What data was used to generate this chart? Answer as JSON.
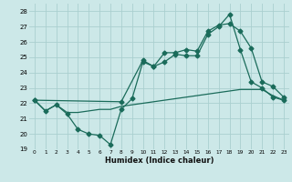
{
  "xlabel": "Humidex (Indice chaleur)",
  "xlim": [
    -0.5,
    23.5
  ],
  "ylim": [
    19,
    28.5
  ],
  "yticks": [
    19,
    20,
    21,
    22,
    23,
    24,
    25,
    26,
    27,
    28
  ],
  "xticks": [
    0,
    1,
    2,
    3,
    4,
    5,
    6,
    7,
    8,
    9,
    10,
    11,
    12,
    13,
    14,
    15,
    16,
    17,
    18,
    19,
    20,
    21,
    22,
    23
  ],
  "color": "#1a6b5a",
  "bg_color": "#cce8e8",
  "grid_color": "#aacfcf",
  "line1_x": [
    0,
    1,
    2,
    3,
    4,
    5,
    6,
    7,
    8,
    9,
    10,
    11,
    12,
    13,
    14,
    15,
    16,
    17,
    18,
    19,
    20,
    21,
    22,
    23
  ],
  "line1_y": [
    22.2,
    21.5,
    21.9,
    21.3,
    20.3,
    20.0,
    19.9,
    19.3,
    21.6,
    22.3,
    24.7,
    24.4,
    24.7,
    25.2,
    25.1,
    25.1,
    26.5,
    27.0,
    27.8,
    25.5,
    23.4,
    23.0,
    22.4,
    22.2
  ],
  "line2_x": [
    0,
    8,
    10,
    11,
    12,
    13,
    14,
    15,
    16,
    17,
    18,
    19,
    20,
    21,
    22,
    23
  ],
  "line2_y": [
    22.2,
    22.1,
    24.8,
    24.4,
    25.3,
    25.3,
    25.5,
    25.4,
    26.7,
    27.1,
    27.2,
    26.7,
    25.6,
    23.4,
    23.1,
    22.4
  ],
  "line3_x": [
    0,
    1,
    2,
    3,
    4,
    5,
    6,
    7,
    8,
    9,
    10,
    11,
    12,
    13,
    14,
    15,
    16,
    17,
    18,
    19,
    20,
    21,
    22,
    23
  ],
  "line3_y": [
    22.2,
    21.5,
    21.9,
    21.4,
    21.4,
    21.5,
    21.6,
    21.6,
    21.8,
    21.9,
    22.0,
    22.1,
    22.2,
    22.3,
    22.4,
    22.5,
    22.6,
    22.7,
    22.8,
    22.9,
    22.9,
    22.9,
    22.5,
    22.2
  ],
  "marker_size": 2.5,
  "linewidth": 0.9
}
